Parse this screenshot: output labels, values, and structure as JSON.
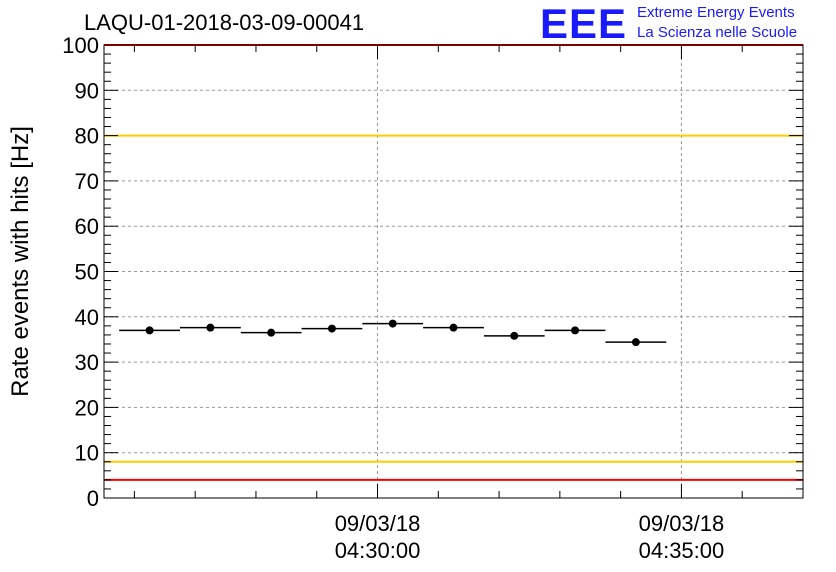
{
  "header": {
    "title": "LAQU-01-2018-03-09-00041",
    "logo_text": "EEE",
    "brand_line1": "Extreme Energy Events",
    "brand_line2": "La Scienza nelle Scuole"
  },
  "colors": {
    "brand": "#1a1aff",
    "limit_red": "#ff0000",
    "limit_yellow": "#ffcc00",
    "marker": "#000000",
    "grid": "#9a9a9a"
  },
  "chart_data": {
    "type": "scatter",
    "ylabel": "Rate events with hits [Hz]",
    "xlabel": "",
    "ylim": [
      0,
      100
    ],
    "xlim": [
      "04:25:30",
      "04:37:00"
    ],
    "grid": true,
    "x_ticks": [
      {
        "time": "04:30:00",
        "line1": "09/03/18",
        "line2": "04:30:00"
      },
      {
        "time": "04:35:00",
        "line1": "09/03/18",
        "line2": "04:35:00"
      }
    ],
    "y_ticks": [
      0,
      10,
      20,
      30,
      40,
      50,
      60,
      70,
      80,
      90,
      100
    ],
    "reference_lines": [
      {
        "y": 100,
        "color": "red"
      },
      {
        "y": 80,
        "color": "yellow"
      },
      {
        "y": 8,
        "color": "yellow"
      },
      {
        "y": 4,
        "color": "red"
      }
    ],
    "series": [
      {
        "points": [
          {
            "x": "04:26:15",
            "x_start": "04:25:45",
            "x_end": "04:26:45",
            "y": 37.0
          },
          {
            "x": "04:27:15",
            "x_start": "04:26:45",
            "x_end": "04:27:45",
            "y": 37.6
          },
          {
            "x": "04:28:15",
            "x_start": "04:27:45",
            "x_end": "04:28:45",
            "y": 36.5
          },
          {
            "x": "04:29:15",
            "x_start": "04:28:45",
            "x_end": "04:29:45",
            "y": 37.4
          },
          {
            "x": "04:30:15",
            "x_start": "04:29:45",
            "x_end": "04:30:45",
            "y": 38.5
          },
          {
            "x": "04:31:15",
            "x_start": "04:30:45",
            "x_end": "04:31:45",
            "y": 37.6
          },
          {
            "x": "04:32:15",
            "x_start": "04:31:45",
            "x_end": "04:32:45",
            "y": 35.8
          },
          {
            "x": "04:33:15",
            "x_start": "04:32:45",
            "x_end": "04:33:45",
            "y": 37.0
          },
          {
            "x": "04:34:15",
            "x_start": "04:33:45",
            "x_end": "04:34:45",
            "y": 34.4
          }
        ]
      }
    ]
  }
}
